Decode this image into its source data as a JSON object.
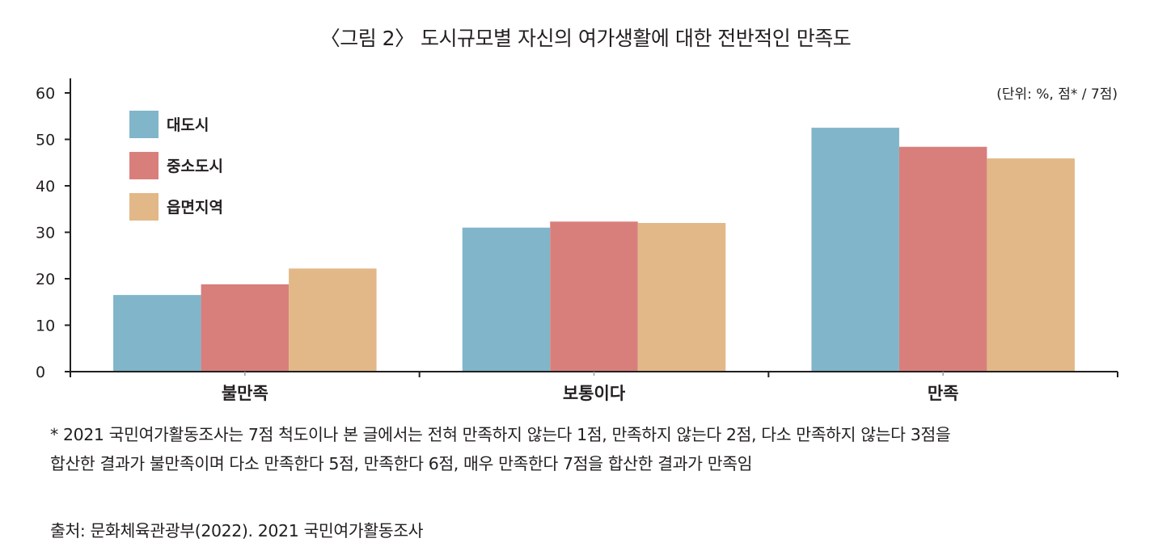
{
  "chart_data": {
    "type": "bar",
    "title": "〈그림 2〉 도시규모별 자신의 여가생활에 대한 전반적인 만족도",
    "unit_note": "(단위: %, 점* / 7점)",
    "categories": [
      "불만족",
      "보통이다",
      "만족"
    ],
    "series": [
      {
        "name": "대도시",
        "color": "#80b5ca",
        "values": [
          16.5,
          31.0,
          52.5
        ]
      },
      {
        "name": "중소도시",
        "color": "#d87f7c",
        "values": [
          18.8,
          32.3,
          48.4
        ]
      },
      {
        "name": "읍면지역",
        "color": "#e2b888",
        "values": [
          22.2,
          32.0,
          45.9
        ]
      }
    ],
    "yticks": [
      0,
      10,
      20,
      30,
      40,
      50,
      60
    ],
    "ylim": [
      0,
      60
    ],
    "xlabel": "",
    "ylabel": "",
    "grid": false,
    "legend_position": "top-left"
  },
  "footnote_lines": [
    "* 2021 국민여가활동조사는 7점 척도이나 본 글에서는 전혀 만족하지 않는다 1점, 만족하지 않는다 2점, 다소 만족하지 않는다 3점을",
    "합산한 결과가 불만족이며 다소 만족한다 5점, 만족한다 6점, 매우 만족한다 7점을 합산한 결과가 만족임"
  ],
  "source": "출처: 문화체육관광부(2022). 2021 국민여가활동조사"
}
